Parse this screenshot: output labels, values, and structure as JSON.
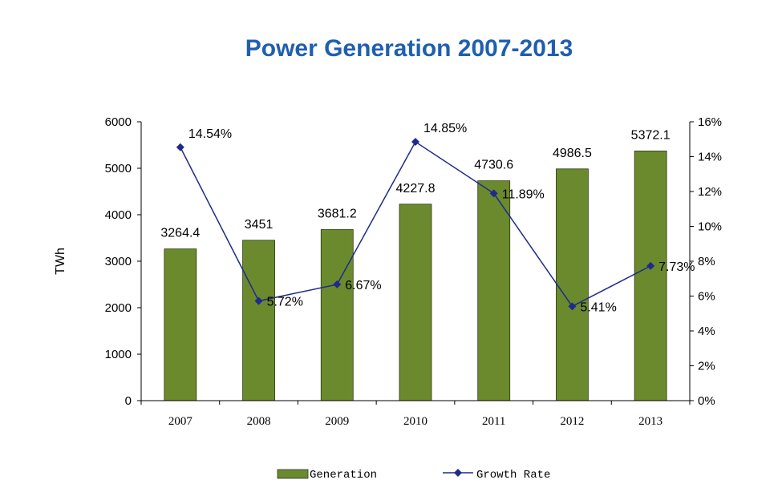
{
  "chart_data": {
    "type": "bar",
    "title": "Power Generation 2007-2013",
    "ylabel": "TWh",
    "categories": [
      "2007",
      "2008",
      "2009",
      "2010",
      "2011",
      "2012",
      "2013"
    ],
    "series": [
      {
        "name": "Generation",
        "type": "bar",
        "axis": "left",
        "values": [
          3264.4,
          3451,
          3681.2,
          4227.8,
          4730.6,
          4986.5,
          5372.1
        ],
        "labels": [
          "3264.4",
          "3451",
          "3681.2",
          "4227.8",
          "4730.6",
          "4986.5",
          "5372.1"
        ]
      },
      {
        "name": "Growth Rate",
        "type": "line",
        "axis": "right",
        "values": [
          14.54,
          5.72,
          6.67,
          14.85,
          11.89,
          5.41,
          7.73
        ],
        "labels": [
          "14.54%",
          "5.72%",
          "6.67%",
          "14.85%",
          "11.89%",
          "5.41%",
          "7.73%"
        ]
      }
    ],
    "ylim": [
      0,
      6000
    ],
    "yticks": [
      "0",
      "1000",
      "2000",
      "3000",
      "4000",
      "5000",
      "6000"
    ],
    "y2lim": [
      0,
      16
    ],
    "y2ticks": [
      "0%",
      "2%",
      "4%",
      "6%",
      "8%",
      "10%",
      "12%",
      "14%",
      "16%"
    ],
    "legend_position": "bottom",
    "grid": false,
    "colors": {
      "bar": "#6b8a2e",
      "line": "#1f2a8c",
      "title": "#1f5fae"
    }
  }
}
